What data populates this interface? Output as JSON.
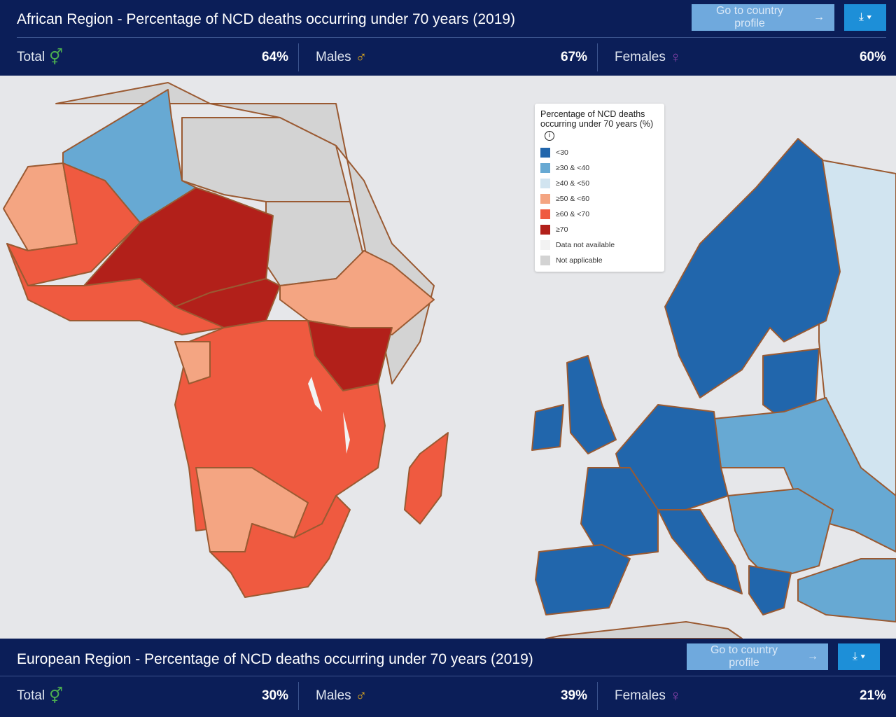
{
  "africa": {
    "title": "African Region - Percentage of NCD deaths occurring under 70 years (2019)",
    "profile_button": "Go to country profile",
    "stats": [
      {
        "label": "Total",
        "symbol": "⚥",
        "color": "#4caf50",
        "value": "64%"
      },
      {
        "label": "Males",
        "symbol": "♂",
        "color": "#e0a81c",
        "value": "67%"
      },
      {
        "label": "Females",
        "symbol": "♀",
        "color": "#8e44ad",
        "value": "60%"
      }
    ]
  },
  "europe": {
    "title": "European Region - Percentage of NCD deaths occurring under 70 years (2019)",
    "profile_button": "Go to country profile",
    "stats": [
      {
        "label": "Total",
        "symbol": "⚥",
        "color": "#4caf50",
        "value": "30%"
      },
      {
        "label": "Males",
        "symbol": "♂",
        "color": "#e0a81c",
        "value": "39%"
      },
      {
        "label": "Females",
        "symbol": "♀",
        "color": "#8e44ad",
        "value": "21%"
      }
    ]
  },
  "legend": {
    "title": "Percentage of NCD deaths occurring under 70 years (%)",
    "items": [
      {
        "label": "<30",
        "color": "#2166ac"
      },
      {
        "label": "≥30 & <40",
        "color": "#67a9d3"
      },
      {
        "label": "≥40 & <50",
        "color": "#d1e4f0"
      },
      {
        "label": "≥50 & <60",
        "color": "#f4a582"
      },
      {
        "label": "≥60 & <70",
        "color": "#ef5a40"
      },
      {
        "label": "≥70",
        "color": "#b2201a"
      },
      {
        "label": "Data not available",
        "color": "#f2f2f2"
      },
      {
        "label": "Not applicable",
        "color": "#d3d3d3"
      }
    ]
  }
}
